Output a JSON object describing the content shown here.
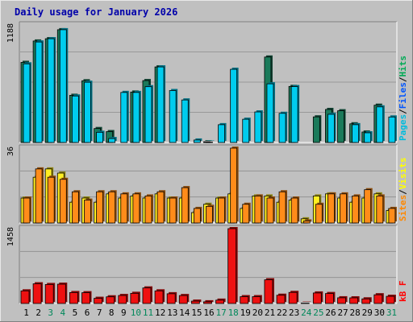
{
  "chart_data": [
    {
      "type": "bar",
      "title": "Daily usage for January 2026",
      "ymax_label": "1188",
      "right_labels": [
        {
          "text": "Pages",
          "color": "#00bbdd"
        },
        {
          "text": "/",
          "color": "#000000"
        },
        {
          "text": "Files",
          "color": "#0055ff"
        },
        {
          "text": "/",
          "color": "#000000"
        },
        {
          "text": "Hits",
          "color": "#00aa55"
        }
      ],
      "categories": [
        "1",
        "2",
        "3",
        "4",
        "5",
        "6",
        "7",
        "8",
        "9",
        "10",
        "11",
        "12",
        "13",
        "14",
        "15",
        "16",
        "17",
        "18",
        "19",
        "20",
        "21",
        "22",
        "23",
        "24",
        "25",
        "26",
        "27",
        "28",
        "29",
        "30",
        "31"
      ],
      "weekend_days": [
        "3",
        "4",
        "10",
        "11",
        "17",
        "18",
        "24",
        "25",
        "31"
      ],
      "ylim": [
        0,
        1188
      ],
      "series": [
        {
          "name": "Hits",
          "color": "#1b7a5a",
          "values": [
            810,
            1026,
            1049,
            1140,
            477,
            624,
            141,
            110,
            0,
            510,
            626,
            764,
            0,
            0,
            0,
            7,
            0,
            0,
            0,
            0,
            864,
            0,
            567,
            0,
            259,
            334,
            321,
            189,
            106,
            377,
            0
          ]
        },
        {
          "name": "Files",
          "color": "#0000cc",
          "values": [
            0,
            0,
            0,
            0,
            0,
            0,
            0,
            0,
            0,
            0,
            0,
            0,
            0,
            0,
            0,
            0,
            0,
            0,
            0,
            0,
            0,
            0,
            0,
            0,
            0,
            0,
            0,
            0,
            0,
            0,
            0
          ]
        },
        {
          "name": "Pages",
          "color": "#00ccee",
          "values": [
            795,
            1016,
            1049,
            1140,
            470,
            609,
            103,
            40,
            506,
            506,
            564,
            764,
            525,
            430,
            25,
            4,
            180,
            740,
            235,
            309,
            593,
            295,
            565,
            0,
            0,
            285,
            0,
            180,
            98,
            360,
            258
          ]
        }
      ]
    },
    {
      "type": "bar",
      "ymax_label": "36",
      "right_labels": [
        {
          "text": "Sites",
          "color": "#ff8800"
        },
        {
          "text": "/",
          "color": "#000000"
        },
        {
          "text": "Visits",
          "color": "#ffff00"
        }
      ],
      "ylim": [
        0,
        36
      ],
      "series": [
        {
          "name": "Visits",
          "color": "#ffee22",
          "values": [
            12,
            22,
            26,
            24,
            10,
            12,
            10,
            14,
            12,
            13,
            12,
            14,
            12,
            12,
            5,
            9,
            12,
            14,
            7,
            13,
            13,
            10,
            11,
            2,
            13,
            14,
            12,
            10,
            12,
            14,
            6
          ]
        },
        {
          "name": "Sites",
          "color": "#ff8c1a",
          "values": [
            12,
            26,
            22,
            21,
            15,
            11,
            15,
            15,
            14,
            14,
            13,
            15,
            12,
            17,
            7,
            8,
            12,
            36,
            9,
            13,
            12,
            15,
            12,
            1,
            9,
            14,
            14,
            13,
            16,
            13,
            7
          ]
        }
      ]
    },
    {
      "type": "bar",
      "ymax_label": "1458",
      "right_labels": [
        {
          "text": "kB F",
          "color": "#ff0000"
        }
      ],
      "ylim": [
        0,
        1458
      ],
      "series": [
        {
          "name": "kB F",
          "color": "#ee1111",
          "values": [
            246,
            384,
            370,
            376,
            213,
            210,
            101,
            130,
            156,
            198,
            303,
            246,
            190,
            155,
            46,
            33,
            65,
            1458,
            133,
            133,
            462,
            161,
            216,
            7,
            205,
            194,
            111,
            110,
            90,
            170,
            140
          ]
        }
      ]
    }
  ]
}
